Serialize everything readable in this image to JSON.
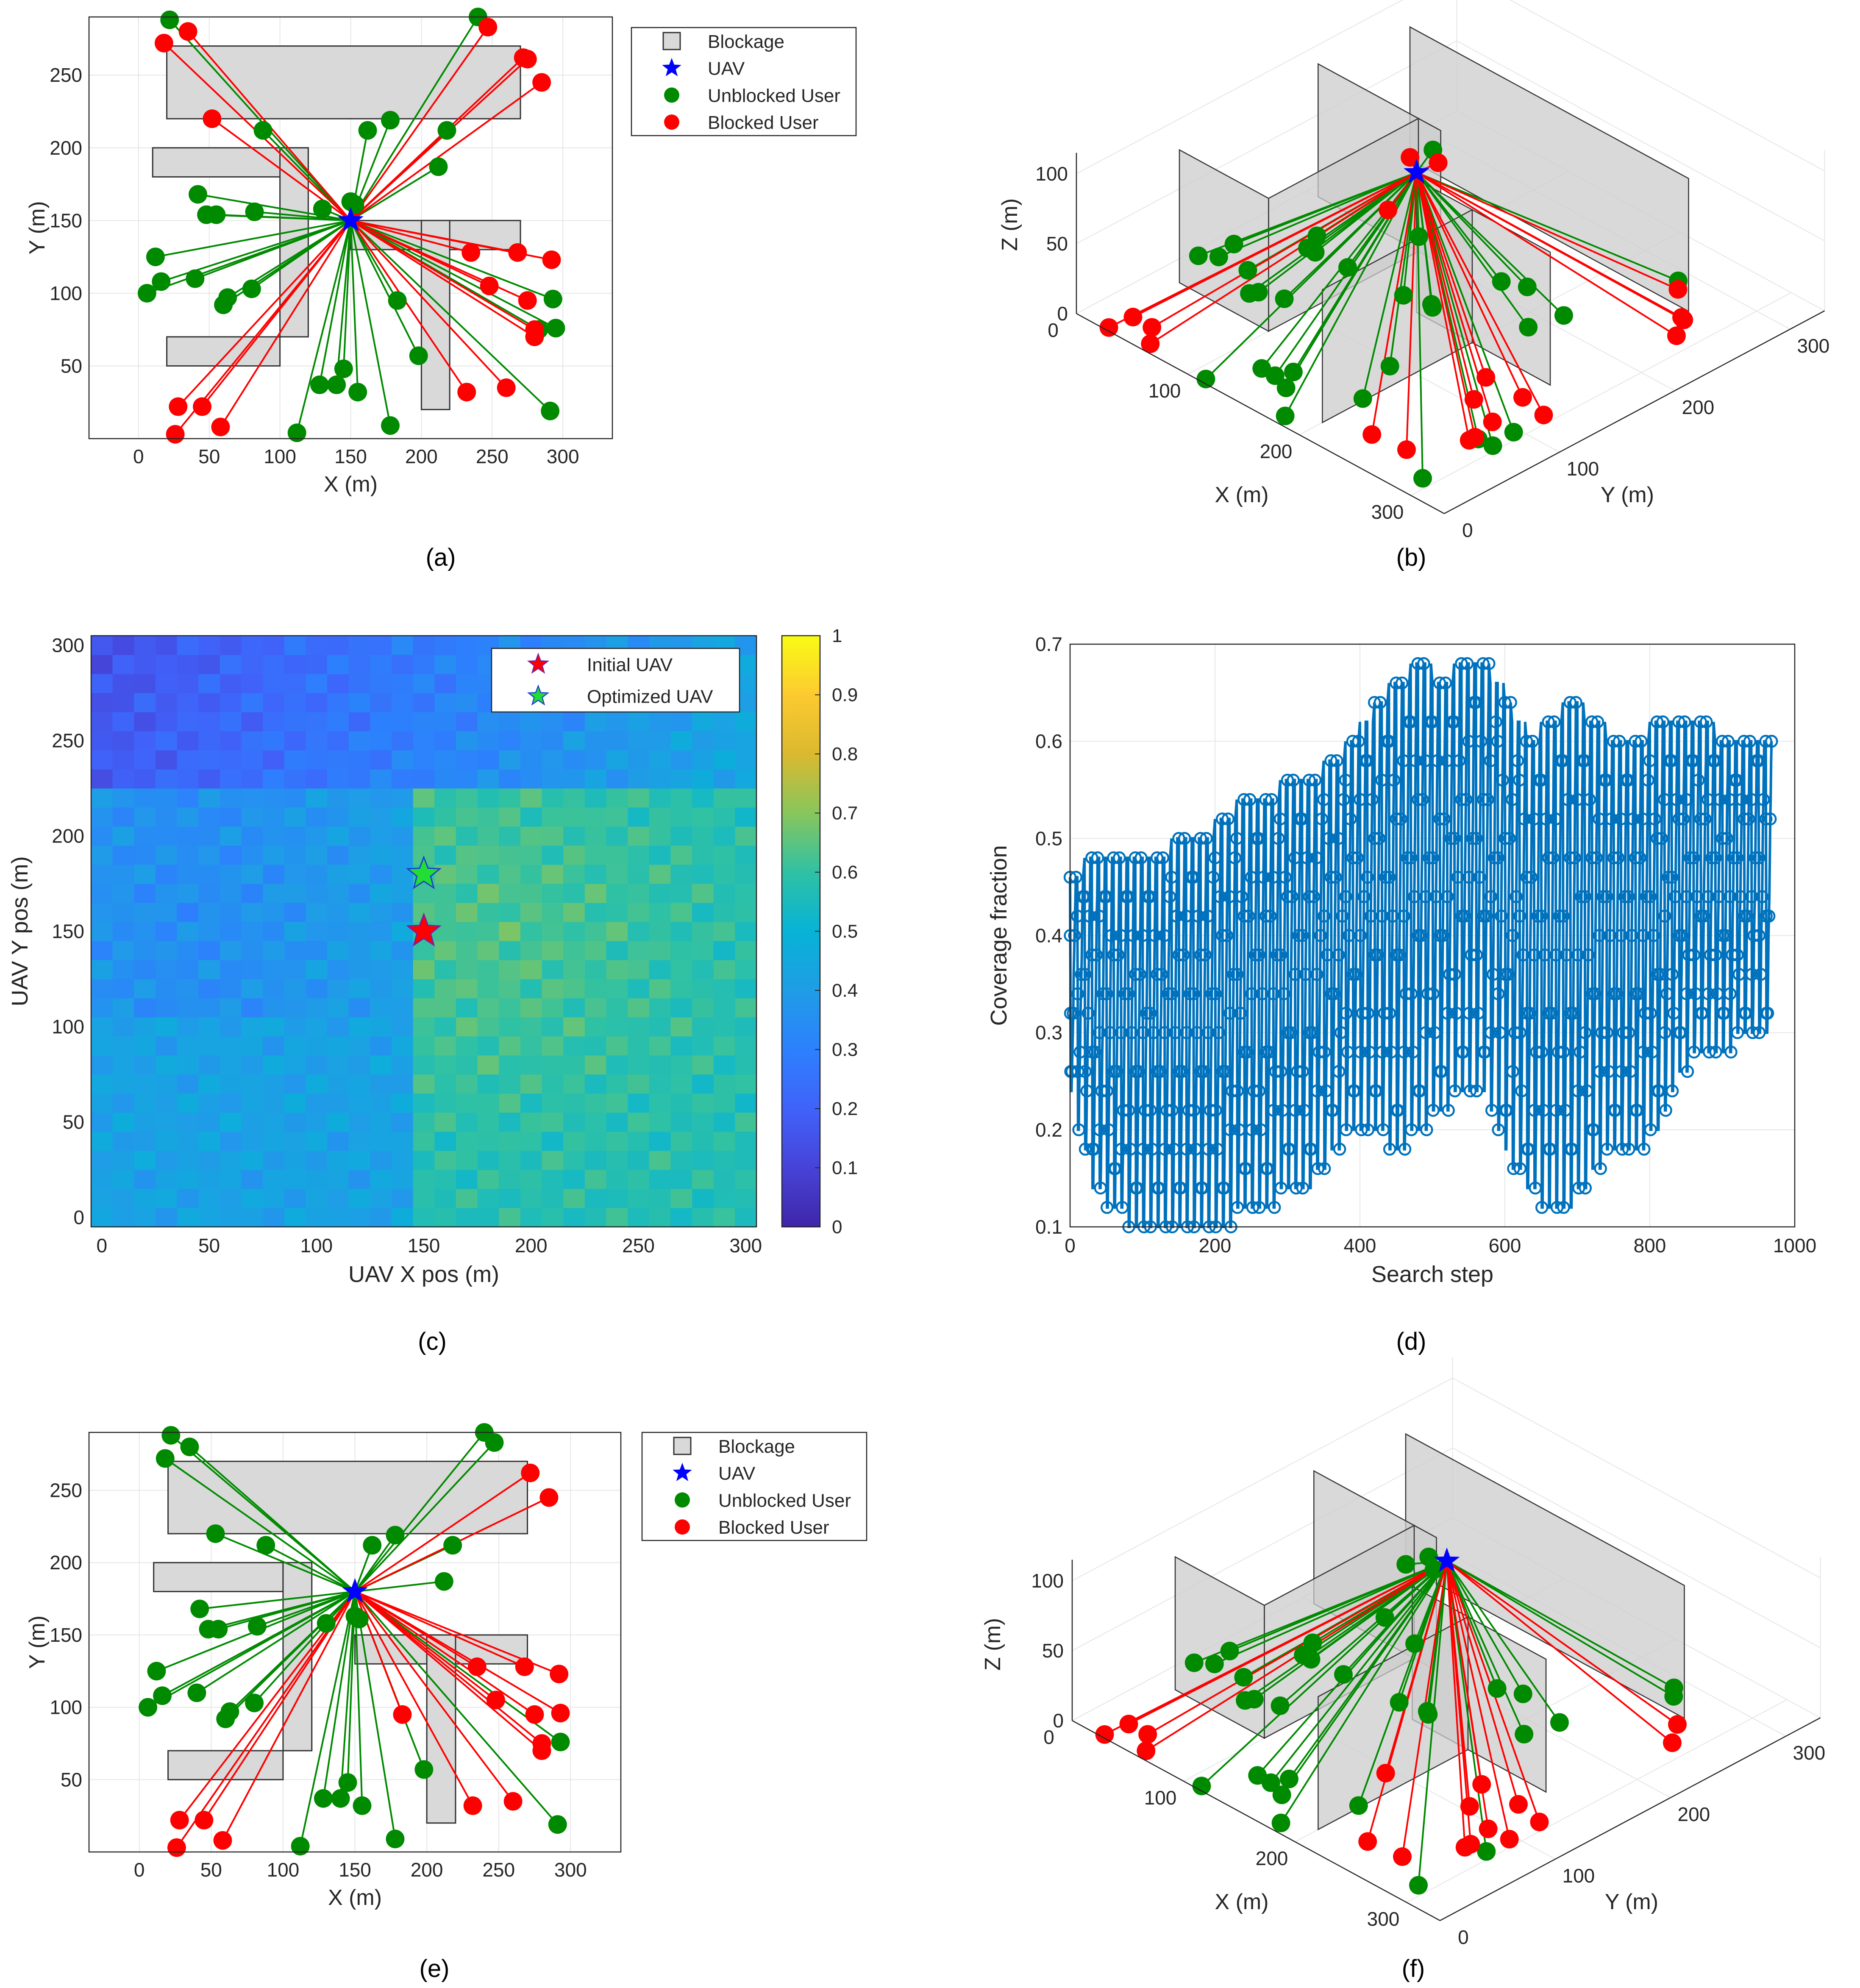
{
  "figure": {
    "captions": [
      "(a)",
      "(b)",
      "(c)",
      "(d)",
      "(e)",
      "(f)"
    ],
    "colors": {
      "blockage": "#d9d9d9",
      "uav": "#0000ff",
      "unblocked": "#008a00",
      "blocked": "#ff0000",
      "line_blue": "#0072bd",
      "grid": "#e6e6e6"
    }
  },
  "chart_data": [
    {
      "id": "a",
      "type": "scatter",
      "xlabel": "X (m)",
      "ylabel": "Y (m)",
      "xlim": [
        -35,
        335
      ],
      "ylim": [
        0,
        290
      ],
      "xticks": [
        "0",
        "50",
        "100",
        "150",
        "200",
        "250",
        "300"
      ],
      "yticks": [
        "50",
        "100",
        "150",
        "200",
        "250"
      ],
      "legend": {
        "position": "outside-right",
        "entries": [
          "Blockage",
          "UAV",
          "Unblocked User",
          "Blocked User"
        ]
      },
      "blockages": [
        [
          20,
          220,
          270,
          270
        ],
        [
          10,
          180,
          120,
          200
        ],
        [
          100,
          70,
          120,
          200
        ],
        [
          20,
          50,
          100,
          70
        ],
        [
          150,
          130,
          270,
          150
        ],
        [
          200,
          20,
          220,
          150
        ]
      ],
      "uav": [
        150,
        150
      ],
      "unblocked_users": [
        [
          22,
          288
        ],
        [
          240,
          290
        ],
        [
          88,
          212
        ],
        [
          162,
          212
        ],
        [
          178,
          219
        ],
        [
          218,
          212
        ],
        [
          212,
          187
        ],
        [
          153,
          161
        ],
        [
          150,
          163
        ],
        [
          42,
          168
        ],
        [
          48,
          154
        ],
        [
          55,
          154
        ],
        [
          82,
          156
        ],
        [
          130,
          158
        ],
        [
          12,
          125
        ],
        [
          16,
          108
        ],
        [
          6,
          100
        ],
        [
          40,
          110
        ],
        [
          63,
          97
        ],
        [
          60,
          92
        ],
        [
          80,
          103
        ],
        [
          183,
          95
        ],
        [
          293,
          96
        ],
        [
          295,
          76
        ],
        [
          283,
          75
        ],
        [
          198,
          57
        ],
        [
          145,
          48
        ],
        [
          128,
          37
        ],
        [
          140,
          37
        ],
        [
          155,
          32
        ],
        [
          178,
          9
        ],
        [
          112,
          4
        ],
        [
          291,
          19
        ]
      ],
      "blocked_users": [
        [
          18,
          272
        ],
        [
          35,
          280
        ],
        [
          272,
          262
        ],
        [
          275,
          261
        ],
        [
          247,
          283
        ],
        [
          285,
          245
        ],
        [
          52,
          220
        ],
        [
          235,
          128
        ],
        [
          268,
          128
        ],
        [
          292,
          123
        ],
        [
          248,
          105
        ],
        [
          275,
          95
        ],
        [
          280,
          75
        ],
        [
          280,
          70
        ],
        [
          232,
          32
        ],
        [
          260,
          35
        ],
        [
          28,
          22
        ],
        [
          45,
          22
        ],
        [
          58,
          8
        ],
        [
          26,
          3
        ]
      ]
    },
    {
      "id": "b",
      "type": "scatter3d",
      "xlabel": "X (m)",
      "ylabel": "Y (m)",
      "zlabel": "Z (m)",
      "xticks": [
        "0",
        "100",
        "200",
        "300"
      ],
      "yticks": [
        "0",
        "100",
        "200",
        "300"
      ],
      "zticks": [
        "0",
        "50",
        "100"
      ],
      "uav": [
        150,
        150,
        100
      ]
    },
    {
      "id": "c",
      "type": "heatmap",
      "xlabel": "UAV X pos (m)",
      "ylabel": "UAV Y pos (m)",
      "xlim": [
        -5,
        305
      ],
      "ylim": [
        -5,
        305
      ],
      "xticks": [
        "0",
        "50",
        "100",
        "150",
        "200",
        "250",
        "300"
      ],
      "yticks": [
        "0",
        "50",
        "100",
        "150",
        "200",
        "250",
        "300"
      ],
      "clim": [
        0,
        1
      ],
      "colorbar_ticks": [
        "0",
        "0.1",
        "0.2",
        "0.3",
        "0.4",
        "0.5",
        "0.6",
        "0.7",
        "0.8",
        "0.9",
        "1"
      ],
      "legend": {
        "position": "top-right",
        "entries": [
          "Initial UAV",
          "Optimized UAV"
        ]
      },
      "initial_uav": [
        150,
        150
      ],
      "optimized_uav": [
        150,
        180
      ],
      "value_regions": [
        {
          "x": [
            0,
            300
          ],
          "y": [
            225,
            300
          ],
          "value": 0.2
        },
        {
          "x": [
            0,
            150
          ],
          "y": [
            0,
            225
          ],
          "value": 0.42
        },
        {
          "x": [
            150,
            300
          ],
          "y": [
            0,
            225
          ],
          "value": 0.57
        }
      ]
    },
    {
      "id": "d",
      "type": "line",
      "xlabel": "Search step",
      "ylabel": "Coverage fraction",
      "xlim": [
        0,
        1000
      ],
      "ylim": [
        0.1,
        0.7
      ],
      "xticks": [
        "0",
        "200",
        "400",
        "600",
        "800",
        "1000"
      ],
      "yticks": [
        "0.1",
        "0.2",
        "0.3",
        "0.4",
        "0.5",
        "0.6",
        "0.7"
      ],
      "x": [
        0,
        30,
        60,
        90,
        120,
        150,
        180,
        210,
        240,
        270,
        300,
        330,
        360,
        390,
        420,
        450,
        480,
        510,
        540,
        570,
        600,
        630,
        660,
        690,
        720,
        750,
        780,
        810,
        840,
        870,
        900,
        930,
        960
      ],
      "upper": [
        0.46,
        0.48,
        0.48,
        0.48,
        0.48,
        0.5,
        0.5,
        0.52,
        0.54,
        0.54,
        0.56,
        0.56,
        0.58,
        0.6,
        0.64,
        0.66,
        0.68,
        0.66,
        0.68,
        0.68,
        0.64,
        0.6,
        0.62,
        0.64,
        0.62,
        0.6,
        0.6,
        0.62,
        0.62,
        0.62,
        0.6,
        0.6,
        0.6
      ],
      "lower": [
        0.24,
        0.14,
        0.12,
        0.1,
        0.1,
        0.1,
        0.1,
        0.1,
        0.12,
        0.12,
        0.14,
        0.14,
        0.18,
        0.2,
        0.2,
        0.18,
        0.2,
        0.22,
        0.24,
        0.24,
        0.18,
        0.14,
        0.12,
        0.12,
        0.16,
        0.18,
        0.18,
        0.2,
        0.26,
        0.28,
        0.28,
        0.3,
        0.3
      ]
    },
    {
      "id": "e",
      "type": "scatter",
      "xlabel": "X (m)",
      "ylabel": "Y (m)",
      "xlim": [
        -35,
        335
      ],
      "ylim": [
        0,
        290
      ],
      "xticks": [
        "0",
        "50",
        "100",
        "150",
        "200",
        "250",
        "300"
      ],
      "yticks": [
        "50",
        "100",
        "150",
        "200",
        "250"
      ],
      "legend": {
        "position": "outside-right",
        "entries": [
          "Blockage",
          "UAV",
          "Unblocked User",
          "Blocked User"
        ]
      },
      "blockages": [
        [
          20,
          220,
          270,
          270
        ],
        [
          10,
          180,
          100,
          200
        ],
        [
          100,
          70,
          120,
          200
        ],
        [
          20,
          50,
          100,
          70
        ],
        [
          150,
          130,
          270,
          150
        ],
        [
          200,
          20,
          220,
          150
        ]
      ],
      "uav": [
        150,
        180
      ],
      "unblocked_users": [
        [
          22,
          288
        ],
        [
          240,
          290
        ],
        [
          18,
          272
        ],
        [
          35,
          280
        ],
        [
          247,
          283
        ],
        [
          88,
          212
        ],
        [
          162,
          212
        ],
        [
          178,
          219
        ],
        [
          218,
          212
        ],
        [
          212,
          187
        ],
        [
          53,
          220
        ],
        [
          153,
          161
        ],
        [
          150,
          163
        ],
        [
          42,
          168
        ],
        [
          48,
          154
        ],
        [
          55,
          154
        ],
        [
          82,
          156
        ],
        [
          130,
          158
        ],
        [
          12,
          125
        ],
        [
          16,
          108
        ],
        [
          6,
          100
        ],
        [
          40,
          110
        ],
        [
          63,
          97
        ],
        [
          60,
          92
        ],
        [
          80,
          103
        ],
        [
          293,
          76
        ],
        [
          198,
          57
        ],
        [
          145,
          48
        ],
        [
          128,
          37
        ],
        [
          140,
          37
        ],
        [
          155,
          32
        ],
        [
          178,
          9
        ],
        [
          112,
          4
        ],
        [
          291,
          19
        ]
      ],
      "blocked_users": [
        [
          272,
          262
        ],
        [
          285,
          245
        ],
        [
          235,
          128
        ],
        [
          268,
          128
        ],
        [
          292,
          123
        ],
        [
          183,
          95
        ],
        [
          248,
          105
        ],
        [
          275,
          95
        ],
        [
          293,
          96
        ],
        [
          280,
          75
        ],
        [
          280,
          70
        ],
        [
          232,
          32
        ],
        [
          260,
          35
        ],
        [
          28,
          22
        ],
        [
          45,
          22
        ],
        [
          58,
          8
        ],
        [
          26,
          3
        ]
      ]
    },
    {
      "id": "f",
      "type": "scatter3d",
      "xlabel": "X (m)",
      "ylabel": "Y (m)",
      "zlabel": "Z (m)",
      "xticks": [
        "0",
        "100",
        "200",
        "300"
      ],
      "yticks": [
        "0",
        "100",
        "200",
        "300"
      ],
      "zticks": [
        "0",
        "50",
        "100"
      ],
      "uav": [
        150,
        180,
        100
      ]
    }
  ]
}
